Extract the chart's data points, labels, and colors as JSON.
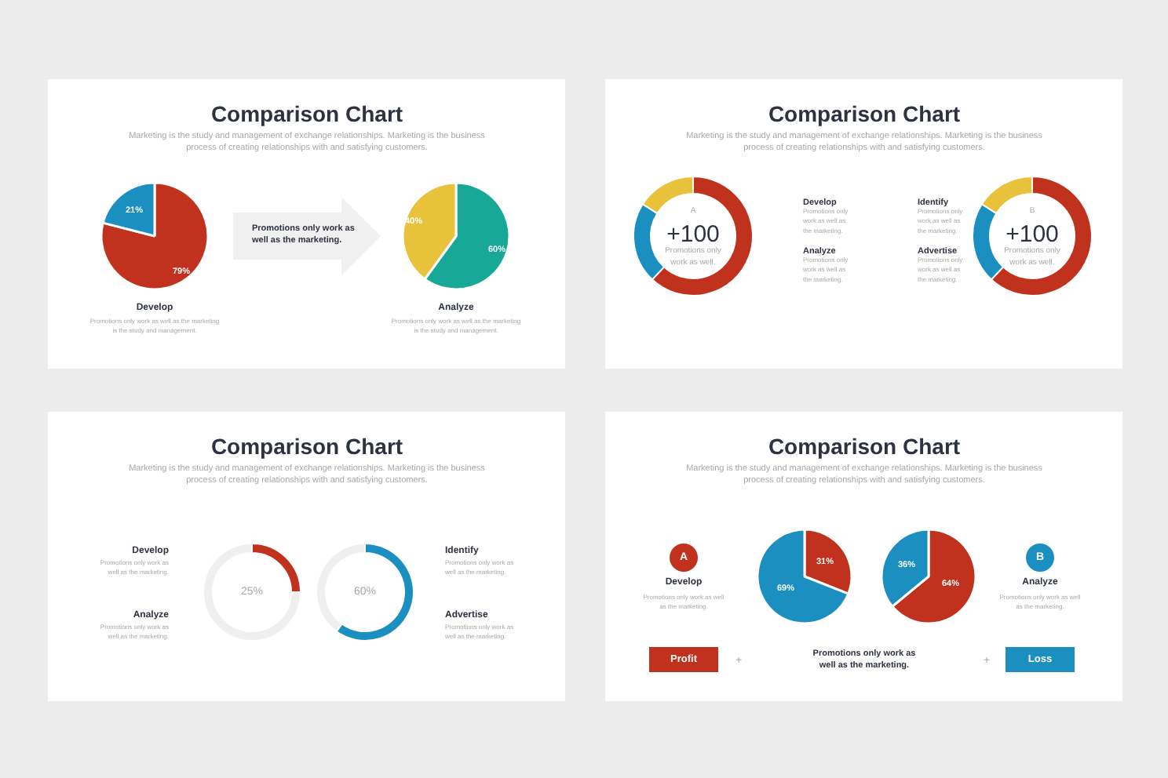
{
  "chart_data": [
    {
      "type": "pie",
      "title": "Comparison Chart",
      "subtitle": "Marketing is the study and management of exchange relationships. Marketing is the business\nprocess of creating relationships with and satisfying customers.",
      "categories": [
        null,
        null
      ],
      "values": [
        79,
        21
      ],
      "colors": [
        "#c0311e",
        "#1b8fc0"
      ],
      "value_labels": [
        "79%",
        "21%"
      ],
      "annotations": [
        "Develop",
        "Promotions only work as well as the marketing\nis the study and management.",
        "Promotions only work as\nwell as the marketing."
      ]
    },
    {
      "type": "pie",
      "categories": [
        null,
        null
      ],
      "values": [
        60,
        40
      ],
      "colors": [
        "#17a898",
        "#e9c23b"
      ],
      "value_labels": [
        "60%",
        "40%"
      ],
      "annotations": [
        "Analyze",
        "Promotions only work as well as the marketing\nis the study and management."
      ]
    },
    {
      "type": "donut",
      "title": "Comparison Chart",
      "subtitle": "Marketing is the study and management of exchange relationships. Marketing is the business\nprocess of creating relationships with and satisfying customers.",
      "categories": [
        null,
        null,
        null
      ],
      "values": [
        62,
        22,
        16
      ],
      "colors": [
        "#c0311e",
        "#1b8fc0",
        "#e9c23b"
      ],
      "annotations": [
        "A",
        "+100",
        "Promotions only\nwork as well."
      ]
    },
    {
      "type": "donut",
      "categories": [
        null,
        null,
        null
      ],
      "values": [
        62,
        22,
        16
      ],
      "colors": [
        "#c0311e",
        "#1b8fc0",
        "#e9c23b"
      ],
      "annotations": [
        "B",
        "+100",
        "Promotions only\nwork as well."
      ]
    },
    {
      "type": "other",
      "annotations": [
        "Develop",
        "Promotions only\nwork as well as\nthe marketing.",
        "Analyze",
        "Promotions only\nwork as well as\nthe marketing.",
        "Identify",
        "Promotions only\nwork as well as\nthe marketing.",
        "Advertise",
        "Promotions only\nwork as well as\nthe marketing."
      ]
    },
    {
      "type": "donut",
      "title": "Comparison Chart",
      "subtitle": "Marketing is the study and management of exchange relationships. Marketing is the business\nprocess of creating relationships with and satisfying customers.",
      "categories": [
        null,
        null
      ],
      "values": [
        25,
        75
      ],
      "colors": [
        "#c0311e",
        "#efefef"
      ],
      "value_labels": [
        "25%",
        null
      ],
      "annotations": [
        "Develop",
        "Promotions only work as\nwell as the marketing.",
        "Analyze",
        "Promotions only work as\nwell as the marketing."
      ]
    },
    {
      "type": "donut",
      "categories": [
        null,
        null
      ],
      "values": [
        60,
        40
      ],
      "colors": [
        "#1b8fc0",
        "#efefef"
      ],
      "value_labels": [
        "60%",
        null
      ],
      "annotations": [
        "Identify",
        "Promotions only work as\nwell as the marketing.",
        "Advertise",
        "Promotions only work as\nwell as the marketing."
      ]
    },
    {
      "type": "pie",
      "title": "Comparison Chart",
      "subtitle": "Marketing is the study and management of exchange relationships. Marketing is the business\nprocess of creating relationships with and satisfying customers.",
      "categories": [
        null,
        null
      ],
      "values": [
        31,
        69
      ],
      "colors": [
        "#c0311e",
        "#1b8fc0"
      ],
      "value_labels": [
        "31%",
        "69%"
      ],
      "annotations": [
        "A",
        "Develop",
        "Promotions only work as well\nas the marketing.",
        "Profit",
        "+",
        "Promotions only work as\nwell as the marketing."
      ]
    },
    {
      "type": "pie",
      "categories": [
        null,
        null
      ],
      "values": [
        64,
        36
      ],
      "colors": [
        "#c0311e",
        "#1b8fc0"
      ],
      "value_labels": [
        "64%",
        "36%"
      ],
      "annotations": [
        "B",
        "Analyze",
        "Promotions only work as well\nas the marketing.",
        "+",
        "Loss"
      ]
    }
  ]
}
